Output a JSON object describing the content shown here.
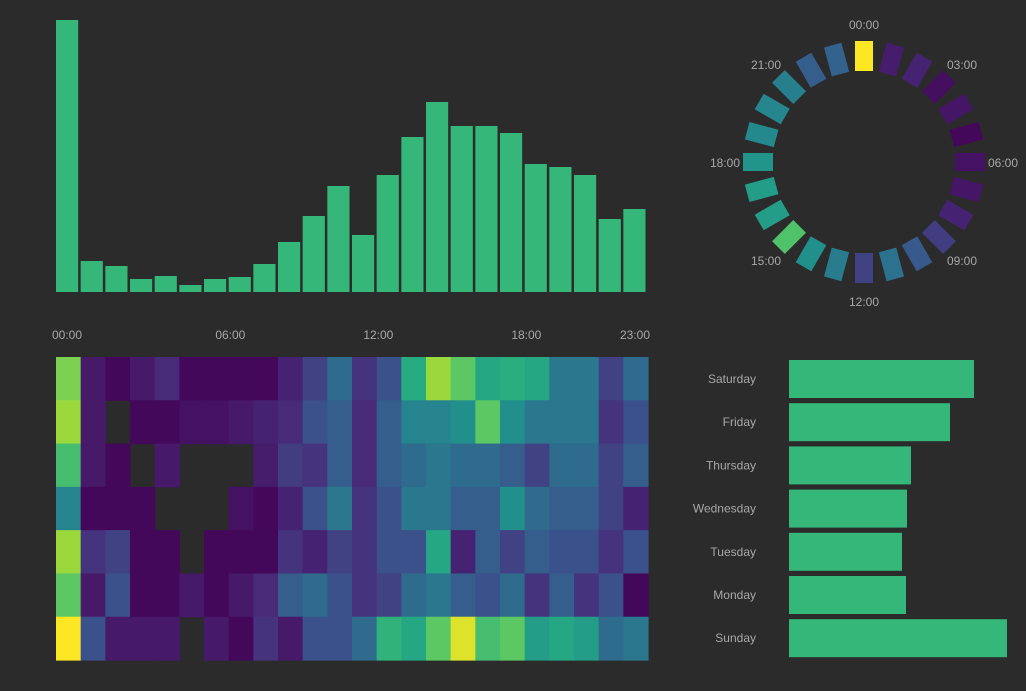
{
  "colors": {
    "background": "#2b2b2b",
    "bar": "#35b779",
    "label": "#a8a8a8",
    "colormap": "viridis"
  },
  "chart_data": [
    {
      "type": "bar",
      "name": "hourly-activity",
      "categories": [
        "00:00",
        "01:00",
        "02:00",
        "03:00",
        "04:00",
        "05:00",
        "06:00",
        "07:00",
        "08:00",
        "09:00",
        "10:00",
        "11:00",
        "12:00",
        "13:00",
        "14:00",
        "15:00",
        "16:00",
        "17:00",
        "18:00",
        "19:00",
        "20:00",
        "21:00",
        "22:00",
        "23:00"
      ],
      "values": [
        272,
        31,
        26,
        13,
        16,
        7,
        13,
        15,
        28,
        50,
        76,
        106,
        57,
        117,
        155,
        190,
        166,
        166,
        159,
        128,
        125,
        117,
        73,
        83
      ],
      "xticks": [
        "00:00",
        "06:00",
        "12:00",
        "18:00",
        "23:00"
      ],
      "ylim": [
        0,
        272
      ]
    },
    {
      "type": "radial",
      "name": "hour-wheel",
      "categories": [
        "00:00",
        "01:00",
        "02:00",
        "03:00",
        "04:00",
        "05:00",
        "06:00",
        "07:00",
        "08:00",
        "09:00",
        "10:00",
        "11:00",
        "12:00",
        "13:00",
        "14:00",
        "15:00",
        "16:00",
        "17:00",
        "18:00",
        "19:00",
        "20:00",
        "21:00",
        "22:00",
        "23:00"
      ],
      "values": [
        1.0,
        0.08,
        0.1,
        0.04,
        0.06,
        0.02,
        0.05,
        0.06,
        0.1,
        0.18,
        0.28,
        0.38,
        0.2,
        0.42,
        0.5,
        0.72,
        0.55,
        0.55,
        0.52,
        0.47,
        0.46,
        0.43,
        0.3,
        0.32
      ],
      "labels": [
        "00:00",
        "03:00",
        "06:00",
        "09:00",
        "12:00",
        "15:00",
        "18:00",
        "21:00"
      ]
    },
    {
      "type": "heatmap",
      "name": "weekday-hour-heatmap",
      "rows": [
        "Saturday",
        "Friday",
        "Thursday",
        "Wednesday",
        "Tuesday",
        "Monday",
        "Sunday"
      ],
      "columns": [
        "00:00",
        "01:00",
        "02:00",
        "03:00",
        "04:00",
        "05:00",
        "06:00",
        "07:00",
        "08:00",
        "09:00",
        "10:00",
        "11:00",
        "12:00",
        "13:00",
        "14:00",
        "15:00",
        "16:00",
        "17:00",
        "18:00",
        "19:00",
        "20:00",
        "21:00",
        "22:00",
        "23:00"
      ],
      "values": [
        [
          0.8,
          0.07,
          0.02,
          0.07,
          0.12,
          0.02,
          0.02,
          0.02,
          0.02,
          0.1,
          0.2,
          0.35,
          0.15,
          0.25,
          0.62,
          0.85,
          0.75,
          0.6,
          0.63,
          0.6,
          0.4,
          0.4,
          0.2,
          0.35
        ],
        [
          0.85,
          0.07,
          null,
          0.02,
          0.02,
          0.05,
          0.05,
          0.07,
          0.1,
          0.12,
          0.25,
          0.3,
          0.12,
          0.3,
          0.45,
          0.45,
          0.5,
          0.75,
          0.5,
          0.4,
          0.4,
          0.4,
          0.15,
          0.25
        ],
        [
          0.7,
          0.07,
          0.02,
          null,
          0.07,
          null,
          null,
          null,
          0.08,
          0.18,
          0.15,
          0.3,
          0.12,
          0.3,
          0.35,
          0.4,
          0.35,
          0.35,
          0.3,
          0.2,
          0.35,
          0.35,
          0.2,
          0.3
        ],
        [
          0.45,
          0.02,
          0.02,
          0.02,
          null,
          null,
          null,
          0.05,
          0.02,
          0.1,
          0.25,
          0.4,
          0.15,
          0.25,
          0.4,
          0.4,
          0.3,
          0.3,
          0.5,
          0.35,
          0.3,
          0.3,
          0.2,
          0.1
        ],
        [
          0.85,
          0.15,
          0.2,
          0.02,
          0.02,
          null,
          0.02,
          0.02,
          0.02,
          0.15,
          0.1,
          0.2,
          0.15,
          0.25,
          0.25,
          0.6,
          0.1,
          0.3,
          0.2,
          0.3,
          0.25,
          0.25,
          0.15,
          0.25
        ],
        [
          0.75,
          0.07,
          0.25,
          0.02,
          0.02,
          0.07,
          0.02,
          0.07,
          0.12,
          0.3,
          0.35,
          0.25,
          0.15,
          0.2,
          0.35,
          0.4,
          0.3,
          0.25,
          0.35,
          0.15,
          0.3,
          0.15,
          0.25,
          0.02
        ],
        [
          1.0,
          0.25,
          0.07,
          0.07,
          0.07,
          null,
          0.07,
          0.02,
          0.15,
          0.07,
          0.25,
          0.25,
          0.35,
          0.65,
          0.6,
          0.75,
          0.95,
          0.7,
          0.75,
          0.55,
          0.6,
          0.55,
          0.35,
          0.4
        ]
      ]
    },
    {
      "type": "bar",
      "name": "weekday-totals",
      "orientation": "horizontal",
      "categories": [
        "Saturday",
        "Friday",
        "Thursday",
        "Wednesday",
        "Tuesday",
        "Monday",
        "Sunday"
      ],
      "values": [
        185,
        161,
        122,
        118,
        113,
        117,
        218
      ]
    }
  ]
}
